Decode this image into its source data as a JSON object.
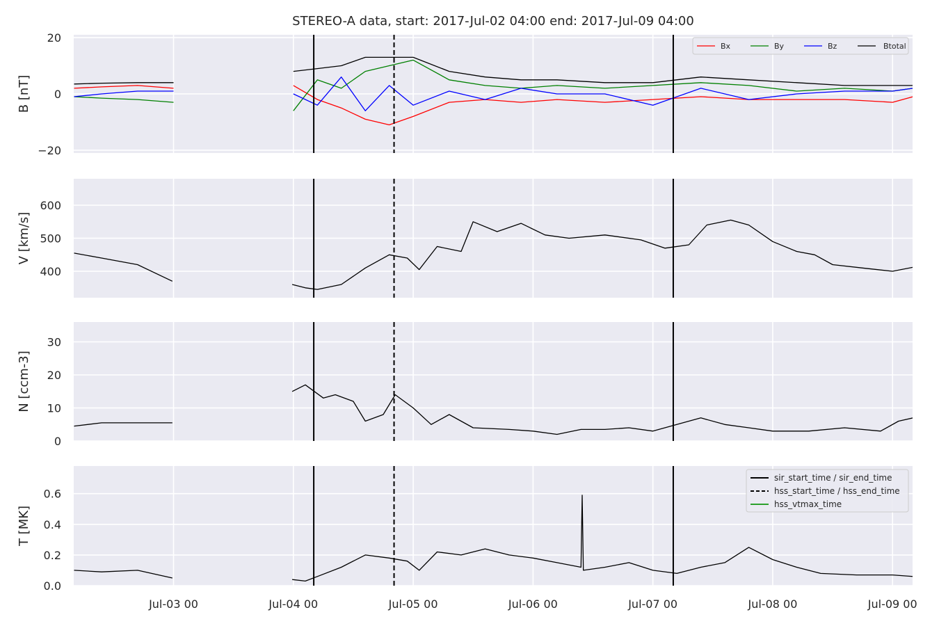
{
  "figure": {
    "title": "STEREO-A data, start: 2017-Jul-02 04:00  end: 2017-Jul-09 04:00",
    "background": "#ffffff",
    "axes_facecolor": "#eaeaf2",
    "grid_color": "#ffffff"
  },
  "chart_data": [
    {
      "type": "line",
      "panel": "magnetic_field",
      "ylabel": "B [nT]",
      "ylim": [
        -21,
        21
      ],
      "yticks": [
        20,
        0,
        -20
      ],
      "ytick_labels": [
        "20",
        "0",
        "−20"
      ],
      "xlim_days": [
        -0.833,
        6.167
      ],
      "legend": {
        "position": "top-right",
        "layout": "horizontal"
      },
      "grid": true,
      "series": [
        {
          "name": "Bx",
          "color": "#ff0000",
          "x": [
            -0.83,
            -0.6,
            -0.3,
            0,
            1.0,
            1.2,
            1.4,
            1.6,
            1.8,
            2.0,
            2.3,
            2.6,
            2.9,
            3.2,
            3.6,
            4.0,
            4.4,
            4.8,
            5.2,
            5.6,
            6.0,
            6.17
          ],
          "y": [
            2,
            2.5,
            3,
            2,
            3,
            -2,
            -5,
            -9,
            -11,
            -8,
            -3,
            -2,
            -3,
            -2,
            -3,
            -2,
            -1,
            -2,
            -2,
            -2,
            -3,
            -1
          ]
        },
        {
          "name": "By",
          "color": "#008000",
          "x": [
            -0.83,
            -0.6,
            -0.3,
            0,
            1.0,
            1.2,
            1.4,
            1.6,
            1.8,
            2.0,
            2.3,
            2.6,
            2.9,
            3.2,
            3.6,
            4.0,
            4.4,
            4.8,
            5.2,
            5.6,
            6.0,
            6.17
          ],
          "y": [
            -1,
            -1.5,
            -2,
            -3,
            -6,
            5,
            2,
            8,
            10,
            12,
            5,
            3,
            2,
            3,
            2,
            3,
            4,
            3,
            1,
            2,
            1,
            2
          ]
        },
        {
          "name": "Bz",
          "color": "#0000ff",
          "x": [
            -0.83,
            -0.6,
            -0.3,
            0,
            1.0,
            1.2,
            1.4,
            1.6,
            1.8,
            2.0,
            2.3,
            2.6,
            2.9,
            3.2,
            3.6,
            4.0,
            4.4,
            4.8,
            5.2,
            5.6,
            6.0,
            6.17
          ],
          "y": [
            -1,
            0,
            1,
            1,
            0,
            -4,
            6,
            -6,
            3,
            -4,
            1,
            -2,
            2,
            0,
            0,
            -4,
            2,
            -2,
            0,
            1,
            1,
            2
          ]
        },
        {
          "name": "Btotal",
          "color": "#000000",
          "x": [
            -0.83,
            -0.6,
            -0.3,
            0,
            1.0,
            1.2,
            1.4,
            1.6,
            1.8,
            2.0,
            2.3,
            2.6,
            2.9,
            3.2,
            3.6,
            4.0,
            4.4,
            4.8,
            5.2,
            5.6,
            6.0,
            6.17
          ],
          "y": [
            3.5,
            3.8,
            4,
            4,
            8,
            9,
            10,
            13,
            13,
            13,
            8,
            6,
            5,
            5,
            4,
            4,
            6,
            5,
            4,
            3,
            3,
            3
          ]
        }
      ]
    },
    {
      "type": "line",
      "panel": "speed",
      "ylabel": "V [km/s]",
      "ylim": [
        320,
        680
      ],
      "yticks": [
        400,
        500,
        600
      ],
      "ytick_labels": [
        "400",
        "500",
        "600"
      ],
      "xlim_days": [
        -0.833,
        6.167
      ],
      "grid": true,
      "series": [
        {
          "color": "#000000",
          "x": [
            -0.83,
            -0.6,
            -0.3,
            -0.01,
            0.99,
            1.1,
            1.2,
            1.4,
            1.6,
            1.8,
            1.95,
            2.05,
            2.2,
            2.4,
            2.5,
            2.7,
            2.9,
            3.1,
            3.3,
            3.6,
            3.9,
            4.1,
            4.3,
            4.45,
            4.65,
            4.8,
            5.0,
            5.2,
            5.35,
            5.5,
            5.75,
            6.0,
            6.17
          ],
          "y": [
            455,
            440,
            420,
            370,
            360,
            350,
            345,
            360,
            410,
            450,
            440,
            405,
            475,
            460,
            550,
            520,
            545,
            510,
            500,
            510,
            495,
            470,
            480,
            540,
            555,
            540,
            490,
            460,
            450,
            420,
            410,
            400,
            412
          ]
        }
      ]
    },
    {
      "type": "line",
      "panel": "density",
      "ylabel": "N [ccm-3]",
      "ylim": [
        0,
        36
      ],
      "yticks": [
        0,
        10,
        20,
        30
      ],
      "ytick_labels": [
        "0",
        "10",
        "20",
        "30"
      ],
      "xlim_days": [
        -0.833,
        6.167
      ],
      "grid": true,
      "series": [
        {
          "color": "#000000",
          "x": [
            -0.83,
            -0.6,
            -0.3,
            -0.01,
            0.99,
            1.1,
            1.25,
            1.35,
            1.5,
            1.6,
            1.75,
            1.85,
            2.0,
            2.15,
            2.3,
            2.5,
            2.8,
            3.0,
            3.2,
            3.4,
            3.6,
            3.8,
            4.0,
            4.2,
            4.4,
            4.6,
            4.8,
            5.0,
            5.3,
            5.6,
            5.9,
            6.05,
            6.17
          ],
          "y": [
            4.5,
            5.5,
            5.5,
            5.5,
            15,
            17,
            13,
            14,
            12,
            6,
            8,
            14,
            10,
            5,
            8,
            4,
            3.5,
            3,
            2,
            3.5,
            3.5,
            4,
            3,
            5,
            7,
            5,
            4,
            3,
            3,
            4,
            3,
            6,
            7
          ]
        }
      ]
    },
    {
      "type": "line",
      "panel": "temperature",
      "ylabel": "T [MK]",
      "ylim": [
        0,
        0.78
      ],
      "yticks": [
        0.0,
        0.2,
        0.4,
        0.6
      ],
      "ytick_labels": [
        "0.0",
        "0.2",
        "0.4",
        "0.6"
      ],
      "xlim_days": [
        -0.833,
        6.167
      ],
      "x_tick_labels": [
        "Jul-03 00",
        "Jul-04 00",
        "Jul-05 00",
        "Jul-06 00",
        "Jul-07 00",
        "Jul-08 00",
        "Jul-09 00"
      ],
      "legend": {
        "position": "top-right"
      },
      "grid": true,
      "series": [
        {
          "color": "#000000",
          "x": [
            -0.83,
            -0.6,
            -0.3,
            -0.01,
            0.99,
            1.1,
            1.2,
            1.4,
            1.6,
            1.8,
            1.95,
            2.05,
            2.2,
            2.4,
            2.6,
            2.8,
            3.0,
            3.2,
            3.4,
            3.41,
            3.42,
            3.6,
            3.8,
            4.0,
            4.2,
            4.4,
            4.6,
            4.8,
            5.0,
            5.2,
            5.4,
            5.7,
            6.0,
            6.17
          ],
          "y": [
            0.1,
            0.09,
            0.1,
            0.05,
            0.04,
            0.03,
            0.06,
            0.12,
            0.2,
            0.18,
            0.16,
            0.1,
            0.22,
            0.2,
            0.24,
            0.2,
            0.18,
            0.15,
            0.12,
            0.59,
            0.1,
            0.12,
            0.15,
            0.1,
            0.08,
            0.12,
            0.15,
            0.25,
            0.17,
            0.12,
            0.08,
            0.07,
            0.07,
            0.06
          ]
        }
      ]
    }
  ],
  "event_lines": {
    "sir_times_days": [
      1.17,
      4.17
    ],
    "hss_times_days": [
      1.84
    ],
    "legend_entries": [
      {
        "label": "sir_start_time / sir_end_time",
        "style": "solid",
        "color": "#000000"
      },
      {
        "label": "hss_start_time / hss_end_time",
        "style": "dashed",
        "color": "#000000"
      },
      {
        "label": "hss_vtmax_time",
        "style": "solid",
        "color": "#2ca02c"
      }
    ]
  },
  "x_axis": {
    "tick_days": [
      0,
      1,
      2,
      3,
      4,
      5,
      6
    ]
  }
}
